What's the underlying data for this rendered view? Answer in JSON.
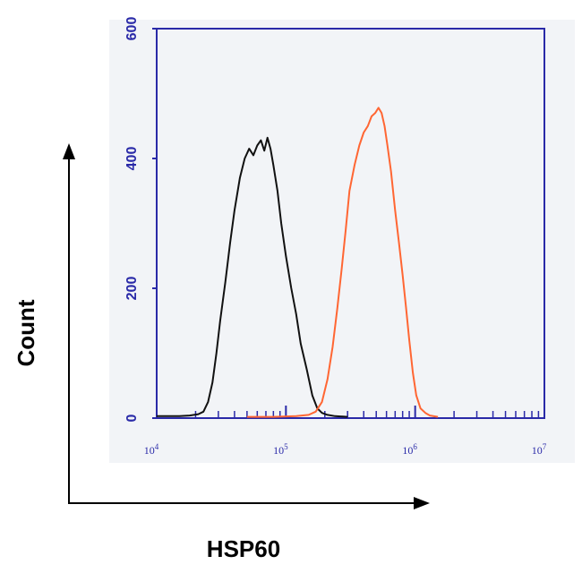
{
  "chart_data": {
    "type": "line",
    "title": "",
    "xlabel": "HSP60",
    "ylabel": "Count",
    "x_scale": "log",
    "xlim": [
      10000,
      10000000
    ],
    "ylim": [
      0,
      600
    ],
    "grid": false,
    "y_ticks": [
      "0",
      "200",
      "400",
      "600"
    ],
    "x_ticks": [
      {
        "base": "10",
        "exp": "4"
      },
      {
        "base": "10",
        "exp": "5"
      },
      {
        "base": "10",
        "exp": "6"
      },
      {
        "base": "10",
        "exp": "7"
      }
    ],
    "colors": {
      "frame": "#2a2aa8",
      "background": "#f2f4f7",
      "series_black": "#111111",
      "series_orange": "#ff6633",
      "outer_axes": "#000000"
    },
    "series": [
      {
        "color": "#111111",
        "points": [
          [
            10000,
            3
          ],
          [
            15000,
            3
          ],
          [
            18000,
            4
          ],
          [
            21000,
            6
          ],
          [
            23000,
            10
          ],
          [
            25000,
            25
          ],
          [
            27000,
            55
          ],
          [
            29000,
            100
          ],
          [
            31000,
            150
          ],
          [
            34000,
            210
          ],
          [
            37000,
            270
          ],
          [
            40000,
            320
          ],
          [
            44000,
            370
          ],
          [
            48000,
            400
          ],
          [
            52000,
            415
          ],
          [
            56000,
            405
          ],
          [
            60000,
            420
          ],
          [
            64000,
            428
          ],
          [
            68000,
            412
          ],
          [
            72000,
            432
          ],
          [
            76000,
            415
          ],
          [
            80000,
            390
          ],
          [
            86000,
            350
          ],
          [
            92000,
            300
          ],
          [
            100000,
            250
          ],
          [
            110000,
            200
          ],
          [
            120000,
            160
          ],
          [
            130000,
            115
          ],
          [
            145000,
            75
          ],
          [
            160000,
            35
          ],
          [
            175000,
            15
          ],
          [
            190000,
            8
          ],
          [
            210000,
            5
          ],
          [
            240000,
            3
          ],
          [
            300000,
            2
          ]
        ]
      },
      {
        "color": "#ff6633",
        "points": [
          [
            50000,
            2
          ],
          [
            80000,
            2
          ],
          [
            120000,
            3
          ],
          [
            150000,
            5
          ],
          [
            170000,
            10
          ],
          [
            190000,
            25
          ],
          [
            210000,
            60
          ],
          [
            230000,
            110
          ],
          [
            250000,
            170
          ],
          [
            270000,
            230
          ],
          [
            290000,
            290
          ],
          [
            310000,
            350
          ],
          [
            340000,
            390
          ],
          [
            370000,
            420
          ],
          [
            400000,
            440
          ],
          [
            430000,
            450
          ],
          [
            460000,
            465
          ],
          [
            490000,
            470
          ],
          [
            520000,
            478
          ],
          [
            550000,
            470
          ],
          [
            580000,
            450
          ],
          [
            610000,
            420
          ],
          [
            650000,
            380
          ],
          [
            700000,
            320
          ],
          [
            750000,
            270
          ],
          [
            800000,
            220
          ],
          [
            850000,
            170
          ],
          [
            900000,
            120
          ],
          [
            960000,
            70
          ],
          [
            1020000,
            35
          ],
          [
            1100000,
            15
          ],
          [
            1200000,
            8
          ],
          [
            1300000,
            4
          ],
          [
            1500000,
            2
          ]
        ]
      }
    ]
  }
}
